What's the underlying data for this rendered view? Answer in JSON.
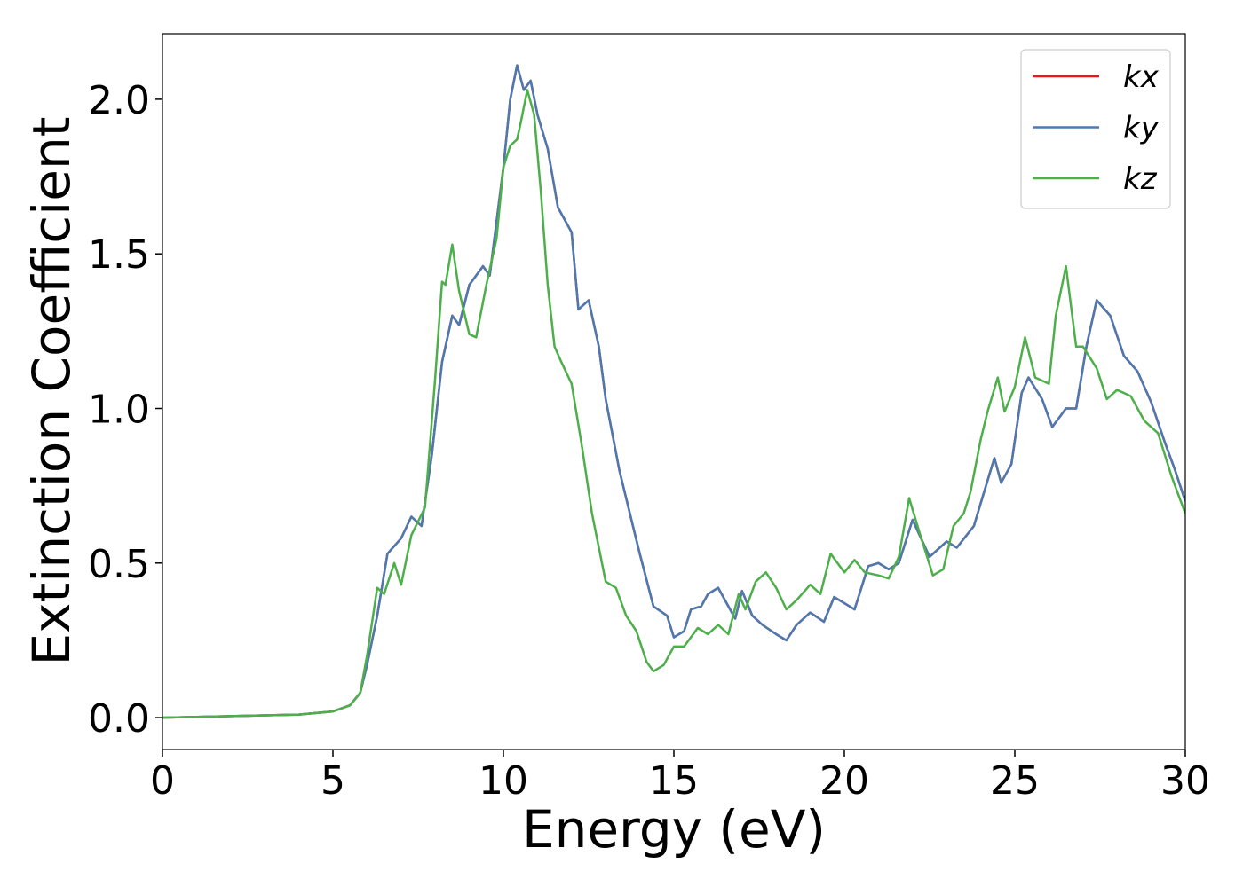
{
  "chart_data": {
    "type": "line",
    "xlabel": "Energy (eV)",
    "ylabel": "Extinction Coefficient",
    "xlim": [
      0,
      30
    ],
    "ylim": [
      -0.103,
      2.212
    ],
    "xticks": [
      0,
      5,
      10,
      15,
      20,
      25,
      30
    ],
    "yticks": [
      {
        "value": 0,
        "label": "0.0"
      },
      {
        "value": 0.5,
        "label": "0.5"
      },
      {
        "value": 1,
        "label": "1.0"
      },
      {
        "value": 1.5,
        "label": "1.5"
      },
      {
        "value": 2,
        "label": "2.0"
      }
    ],
    "legend": "upper right",
    "grid": false,
    "series": [
      {
        "name": "kx",
        "color": "#e41a1c",
        "x": [
          0,
          2,
          4,
          5,
          5.5,
          5.8,
          6,
          6.3,
          6.6,
          7,
          7.3,
          7.6,
          7.9,
          8.2,
          8.5,
          8.7,
          9,
          9.4,
          9.6,
          10,
          10.2,
          10.4,
          10.6,
          10.8,
          11,
          11.3,
          11.6,
          12,
          12.2,
          12.5,
          12.8,
          13,
          13.4,
          13.8,
          14,
          14.4,
          14.8,
          15,
          15.3,
          15.5,
          15.8,
          16,
          16.3,
          16.6,
          16.8,
          17,
          17.3,
          17.6,
          18,
          18.3,
          18.6,
          19,
          19.4,
          19.7,
          20,
          20.3,
          20.7,
          21,
          21.3,
          21.6,
          22,
          22.5,
          23,
          23.3,
          23.8,
          24.1,
          24.4,
          24.6,
          24.9,
          25.2,
          25.4,
          25.8,
          26.1,
          26.5,
          26.8,
          27.1,
          27.4,
          27.8,
          28.2,
          28.6,
          29,
          29.4,
          29.7,
          30
        ],
        "values": [
          0,
          0.005,
          0.01,
          0.02,
          0.04,
          0.08,
          0.17,
          0.33,
          0.53,
          0.58,
          0.65,
          0.62,
          0.85,
          1.15,
          1.3,
          1.27,
          1.4,
          1.46,
          1.43,
          1.78,
          2.0,
          2.11,
          2.03,
          2.06,
          1.95,
          1.84,
          1.65,
          1.57,
          1.32,
          1.35,
          1.2,
          1.03,
          0.8,
          0.62,
          0.53,
          0.36,
          0.33,
          0.26,
          0.28,
          0.35,
          0.36,
          0.4,
          0.42,
          0.36,
          0.32,
          0.41,
          0.33,
          0.3,
          0.27,
          0.25,
          0.3,
          0.34,
          0.31,
          0.39,
          0.37,
          0.35,
          0.49,
          0.5,
          0.48,
          0.5,
          0.64,
          0.52,
          0.57,
          0.55,
          0.62,
          0.73,
          0.84,
          0.76,
          0.82,
          1.05,
          1.1,
          1.03,
          0.94,
          1.0,
          1.0,
          1.2,
          1.35,
          1.3,
          1.17,
          1.12,
          1.02,
          0.89,
          0.8,
          0.7
        ]
      },
      {
        "name": "ky",
        "color": "#4a7ab0",
        "x": [
          0,
          2,
          4,
          5,
          5.5,
          5.8,
          6,
          6.3,
          6.6,
          7,
          7.3,
          7.6,
          7.9,
          8.2,
          8.5,
          8.7,
          9,
          9.4,
          9.6,
          10,
          10.2,
          10.4,
          10.6,
          10.8,
          11,
          11.3,
          11.6,
          12,
          12.2,
          12.5,
          12.8,
          13,
          13.4,
          13.8,
          14,
          14.4,
          14.8,
          15,
          15.3,
          15.5,
          15.8,
          16,
          16.3,
          16.6,
          16.8,
          17,
          17.3,
          17.6,
          18,
          18.3,
          18.6,
          19,
          19.4,
          19.7,
          20,
          20.3,
          20.7,
          21,
          21.3,
          21.6,
          22,
          22.5,
          23,
          23.3,
          23.8,
          24.1,
          24.4,
          24.6,
          24.9,
          25.2,
          25.4,
          25.8,
          26.1,
          26.5,
          26.8,
          27.1,
          27.4,
          27.8,
          28.2,
          28.6,
          29,
          29.4,
          29.7,
          30
        ],
        "values": [
          0,
          0.005,
          0.01,
          0.02,
          0.04,
          0.08,
          0.17,
          0.33,
          0.53,
          0.58,
          0.65,
          0.62,
          0.85,
          1.15,
          1.3,
          1.27,
          1.4,
          1.46,
          1.43,
          1.78,
          2.0,
          2.11,
          2.03,
          2.06,
          1.95,
          1.84,
          1.65,
          1.57,
          1.32,
          1.35,
          1.2,
          1.03,
          0.8,
          0.62,
          0.53,
          0.36,
          0.33,
          0.26,
          0.28,
          0.35,
          0.36,
          0.4,
          0.42,
          0.36,
          0.32,
          0.41,
          0.33,
          0.3,
          0.27,
          0.25,
          0.3,
          0.34,
          0.31,
          0.39,
          0.37,
          0.35,
          0.49,
          0.5,
          0.48,
          0.5,
          0.64,
          0.52,
          0.57,
          0.55,
          0.62,
          0.73,
          0.84,
          0.76,
          0.82,
          1.05,
          1.1,
          1.03,
          0.94,
          1.0,
          1.0,
          1.2,
          1.35,
          1.3,
          1.17,
          1.12,
          1.02,
          0.89,
          0.8,
          0.7
        ]
      },
      {
        "name": "kz",
        "color": "#4daf4a",
        "x": [
          0,
          2,
          4,
          5,
          5.5,
          5.8,
          6,
          6.3,
          6.5,
          6.8,
          7,
          7.3,
          7.7,
          8,
          8.2,
          8.3,
          8.5,
          8.7,
          9,
          9.2,
          9.5,
          9.8,
          10,
          10.2,
          10.4,
          10.5,
          10.7,
          10.9,
          11.1,
          11.3,
          11.5,
          11.7,
          12,
          12.3,
          12.6,
          13,
          13.3,
          13.6,
          13.9,
          14.2,
          14.4,
          14.7,
          15,
          15.3,
          15.7,
          16,
          16.3,
          16.6,
          16.9,
          17.1,
          17.4,
          17.7,
          18,
          18.3,
          18.6,
          19,
          19.3,
          19.6,
          20,
          20.3,
          20.6,
          21,
          21.3,
          21.6,
          21.9,
          22.2,
          22.6,
          22.9,
          23.2,
          23.5,
          23.7,
          24,
          24.2,
          24.5,
          24.7,
          25,
          25.3,
          25.6,
          26,
          26.2,
          26.5,
          26.8,
          27,
          27.4,
          27.7,
          28,
          28.4,
          28.8,
          29.2,
          29.6,
          30
        ],
        "values": [
          0,
          0.005,
          0.01,
          0.02,
          0.04,
          0.08,
          0.2,
          0.42,
          0.4,
          0.5,
          0.43,
          0.59,
          0.68,
          1.1,
          1.41,
          1.4,
          1.53,
          1.38,
          1.24,
          1.23,
          1.4,
          1.55,
          1.78,
          1.85,
          1.87,
          1.92,
          2.03,
          1.95,
          1.7,
          1.4,
          1.2,
          1.15,
          1.08,
          0.88,
          0.66,
          0.44,
          0.42,
          0.33,
          0.28,
          0.18,
          0.15,
          0.17,
          0.23,
          0.23,
          0.29,
          0.27,
          0.3,
          0.27,
          0.4,
          0.35,
          0.44,
          0.47,
          0.42,
          0.35,
          0.38,
          0.43,
          0.4,
          0.53,
          0.47,
          0.51,
          0.47,
          0.46,
          0.45,
          0.52,
          0.71,
          0.6,
          0.46,
          0.48,
          0.62,
          0.66,
          0.73,
          0.9,
          0.99,
          1.1,
          0.99,
          1.07,
          1.23,
          1.1,
          1.08,
          1.3,
          1.46,
          1.2,
          1.2,
          1.13,
          1.03,
          1.06,
          1.04,
          0.96,
          0.92,
          0.78,
          0.66
        ]
      }
    ]
  }
}
